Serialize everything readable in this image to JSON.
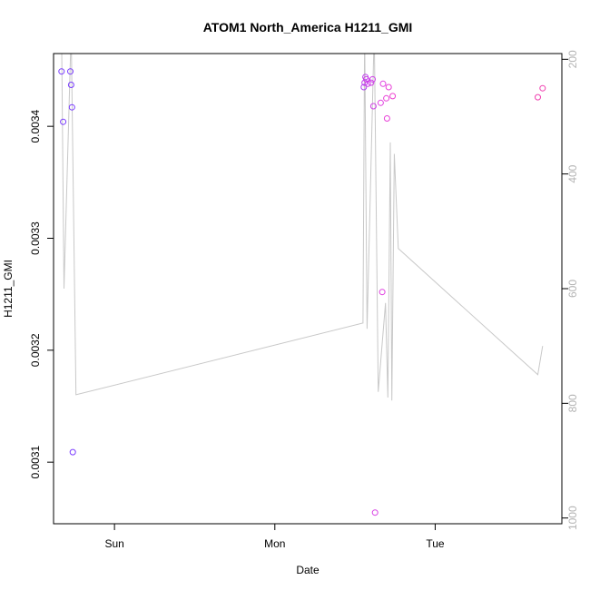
{
  "chart_data": {
    "type": "scatter",
    "title": "ATOM1 North_America H1211_GMI",
    "xlabel": "Date",
    "ylabel": "H1211_GMI",
    "x_ticks": [
      "Sun",
      "Mon",
      "Tue"
    ],
    "x_tick_values": [
      1.0,
      2.0,
      3.0
    ],
    "xlim": [
      0.62,
      3.79
    ],
    "ylim": [
      0.003045,
      0.003465
    ],
    "y_ticks": [
      0.0031,
      0.0032,
      0.0033,
      0.0034
    ],
    "y_tick_labels": [
      "0.0031",
      "0.0032",
      "0.0033",
      "0.0034"
    ],
    "y2_ticks": [
      200,
      400,
      600,
      800,
      1000
    ],
    "y2_tick_labels": [
      "200",
      "400",
      "600",
      "800",
      "1000"
    ],
    "y2lim": [
      1010,
      190
    ],
    "grid": false,
    "series": [
      {
        "type": "line",
        "axis": "right",
        "color": "#c8c8c8",
        "points": [
          [
            0.67,
            150
          ],
          [
            0.685,
            600
          ],
          [
            0.73,
            150
          ],
          [
            0.76,
            785
          ],
          [
            2.55,
            660
          ],
          [
            2.56,
            150
          ],
          [
            2.575,
            670
          ],
          [
            2.62,
            150
          ],
          [
            2.645,
            780
          ],
          [
            2.69,
            625
          ],
          [
            2.705,
            790
          ],
          [
            2.72,
            345
          ],
          [
            2.73,
            795
          ],
          [
            2.745,
            365
          ],
          [
            2.77,
            530
          ],
          [
            3.64,
            750
          ],
          [
            3.67,
            700
          ]
        ]
      },
      {
        "type": "scatter",
        "axis": "left",
        "points": [
          [
            0.67,
            0.003449,
            "#7a3cff"
          ],
          [
            0.68,
            0.003404,
            "#7a3cff"
          ],
          [
            0.725,
            0.003449,
            "#7a3cff"
          ],
          [
            0.73,
            0.003437,
            "#7a3cff"
          ],
          [
            0.735,
            0.003417,
            "#7a3cff"
          ],
          [
            0.74,
            0.003109,
            "#7a3cff"
          ],
          [
            2.555,
            0.003435,
            "#b040f0"
          ],
          [
            2.56,
            0.003439,
            "#c040ee"
          ],
          [
            2.565,
            0.003444,
            "#c040ee"
          ],
          [
            2.57,
            0.003442,
            "#cc40ea"
          ],
          [
            2.58,
            0.003438,
            "#cc40ea"
          ],
          [
            2.6,
            0.003439,
            "#d040e8"
          ],
          [
            2.61,
            0.003442,
            "#d040e8"
          ],
          [
            2.615,
            0.003418,
            "#d040e8"
          ],
          [
            2.625,
            0.003055,
            "#d840e4"
          ],
          [
            2.66,
            0.003421,
            "#e040e0"
          ],
          [
            2.67,
            0.003252,
            "#e040e0"
          ],
          [
            2.675,
            0.003438,
            "#e040e0"
          ],
          [
            2.695,
            0.003425,
            "#e840d8"
          ],
          [
            2.7,
            0.003407,
            "#e840d8"
          ],
          [
            2.71,
            0.003435,
            "#e840d8"
          ],
          [
            2.735,
            0.003427,
            "#ee40d0"
          ],
          [
            3.64,
            0.003426,
            "#f040b0"
          ],
          [
            3.67,
            0.003434,
            "#f040b0"
          ]
        ]
      }
    ]
  }
}
